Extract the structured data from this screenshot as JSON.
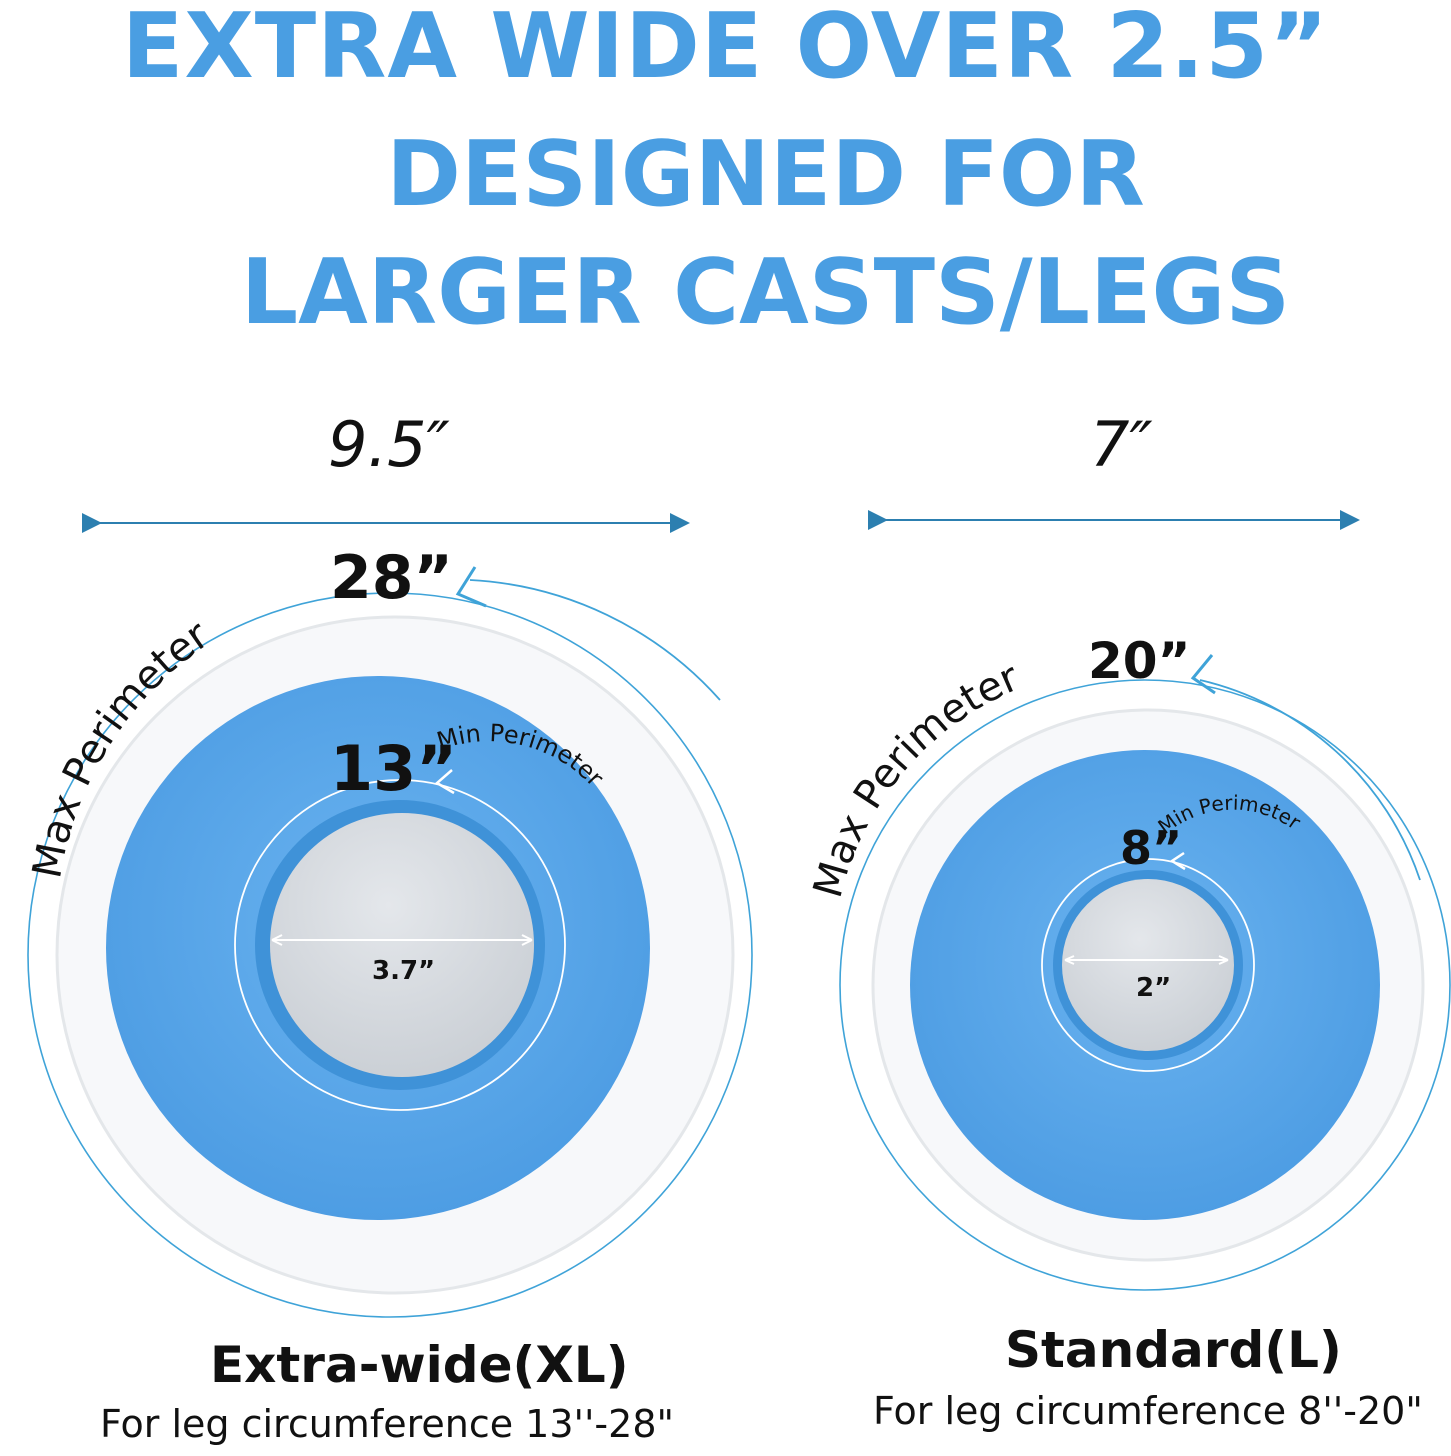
{
  "headline": {
    "line1": "EXTRA WIDE OVER 2.5”",
    "line2": "DESIGNED FOR",
    "line3": "LARGER CASTS/LEGS"
  },
  "colors": {
    "headline": "#4a9ee2",
    "cone_blue": "#5aa8ec",
    "rim_white": "#f7f8fa",
    "guide_line": "#3fa3d8",
    "arrow": "#2c7fb0"
  },
  "xl": {
    "width_label": "9.5″",
    "max_perimeter_value": "28”",
    "max_perimeter_label": "Max Perimeter",
    "min_perimeter_value": "13”",
    "min_perimeter_label": "Min Perimeter",
    "opening_label": "3.7”",
    "name": "Extra-wide(XL)",
    "fit": "For leg circumference 13''-28\""
  },
  "standard": {
    "width_label": "7″",
    "max_perimeter_value": "20”",
    "max_perimeter_label": "Max Perimeter",
    "min_perimeter_value": "8”",
    "min_perimeter_label": "Min Perimeter",
    "opening_label": "2”",
    "name": "Standard(L)",
    "fit": "For leg circumference 8''-20\""
  }
}
